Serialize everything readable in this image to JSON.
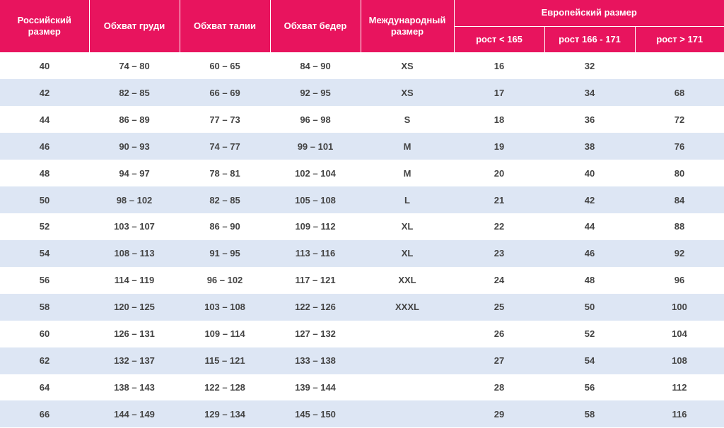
{
  "table": {
    "header": [
      "Российский размер",
      "Обхват груди",
      "Обхват талии",
      "Обхват бедер",
      "Международный размер"
    ],
    "group_header": "Европейский размер",
    "sub_header": [
      "рост < 165",
      "рост 166 - 171",
      "рост > 171"
    ],
    "rows": [
      [
        "40",
        "74 – 80",
        "60 – 65",
        "84 – 90",
        "XS",
        "16",
        "32",
        null
      ],
      [
        "42",
        "82 – 85",
        "66 – 69",
        "92 – 95",
        "XS",
        "17",
        "34",
        "68"
      ],
      [
        "44",
        "86 – 89",
        "77 – 73",
        "96 – 98",
        "S",
        "18",
        "36",
        "72"
      ],
      [
        "46",
        "90 – 93",
        "74 – 77",
        "99 – 101",
        "M",
        "19",
        "38",
        "76"
      ],
      [
        "48",
        "94 – 97",
        "78 – 81",
        "102 – 104",
        "M",
        "20",
        "40",
        "80"
      ],
      [
        "50",
        "98 – 102",
        "82 – 85",
        "105 – 108",
        "L",
        "21",
        "42",
        "84"
      ],
      [
        "52",
        "103 – 107",
        "86 – 90",
        "109 – 112",
        "XL",
        "22",
        "44",
        "88"
      ],
      [
        "54",
        "108 – 113",
        "91 – 95",
        "113 – 116",
        "XL",
        "23",
        "46",
        "92"
      ],
      [
        "56",
        "114 – 119",
        "96 – 102",
        "117 – 121",
        "XXL",
        "24",
        "48",
        "96"
      ],
      [
        "58",
        "120 – 125",
        "103 – 108",
        "122 – 126",
        "XXXL",
        "25",
        "50",
        "100"
      ],
      [
        "60",
        "126 – 131",
        "109 – 114",
        "127 – 132",
        null,
        "26",
        "52",
        "104"
      ],
      [
        "62",
        "132 – 137",
        "115 – 121",
        "133 – 138",
        null,
        "27",
        "54",
        "108"
      ],
      [
        "64",
        "138 – 143",
        "122 – 128",
        "139 – 144",
        null,
        "28",
        "56",
        "112"
      ],
      [
        "66",
        "144 – 149",
        "129 – 134",
        "145 – 150",
        null,
        "29",
        "58",
        "116"
      ]
    ]
  }
}
